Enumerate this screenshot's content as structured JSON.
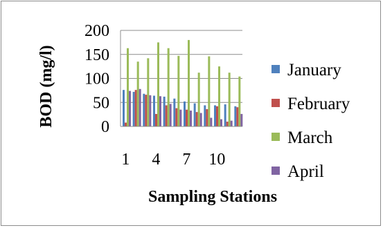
{
  "chart_data": {
    "type": "bar",
    "title": "",
    "xlabel": "Sampling Stations",
    "ylabel": "BOD (mg/l)",
    "ylim": [
      0,
      200
    ],
    "yticks": [
      0,
      50,
      100,
      150,
      200
    ],
    "categories": [
      "1",
      "2",
      "3",
      "4",
      "5",
      "6",
      "7",
      "8",
      "9",
      "10",
      "11",
      "12"
    ],
    "x_tick_labels": [
      "1",
      "",
      "",
      "4",
      "",
      "",
      "7",
      "",
      "",
      "10",
      "",
      ""
    ],
    "grid": true,
    "legend_position": "right",
    "series": [
      {
        "name": "January",
        "color": "#4f81bd",
        "values": [
          76,
          72,
          68,
          64,
          62,
          58,
          52,
          48,
          44,
          44,
          46,
          42
        ]
      },
      {
        "name": "February",
        "color": "#c0504d",
        "values": [
          8,
          76,
          66,
          26,
          44,
          38,
          35,
          30,
          36,
          42,
          10,
          40
        ]
      },
      {
        "name": "March",
        "color": "#9bbb59",
        "values": [
          163,
          135,
          142,
          175,
          163,
          147,
          180,
          112,
          146,
          125,
          112,
          104
        ]
      },
      {
        "name": "April",
        "color": "#8064a2",
        "values": [
          74,
          78,
          65,
          63,
          47,
          35,
          33,
          28,
          18,
          15,
          12,
          26
        ]
      }
    ]
  }
}
